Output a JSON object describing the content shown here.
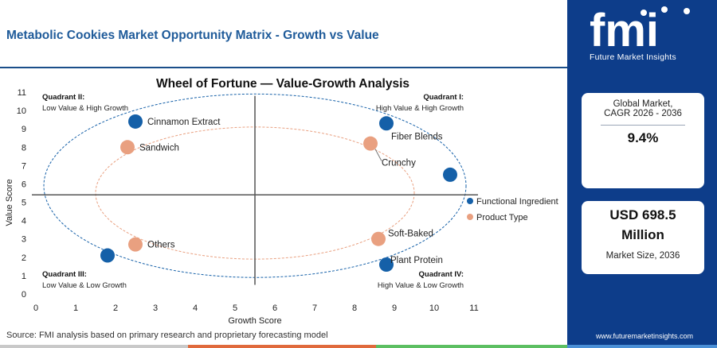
{
  "header": {
    "title": "Metabolic Cookies Market Opportunity Matrix - Growth vs Value"
  },
  "source_text": "Source: FMI analysis based on primary research and proprietary forecasting model",
  "brand": {
    "logo_text": "fmi",
    "logo_sub": "Future Market Insights",
    "website": "www.futuremarketinsights.com",
    "panel_color": "#0d3d8a"
  },
  "cards": {
    "cagr_label_1": "Global Market,",
    "cagr_label_2": "CAGR 2026 - 2036",
    "cagr_value": "9.4%",
    "size_value_1": "USD 698.5",
    "size_value_2": "Million",
    "size_label": "Market Size, 2036"
  },
  "bottom_bar_colors": [
    "#c9c9c9",
    "#e06a3c",
    "#5cbf62",
    "#4a8fd6"
  ],
  "chart_data": {
    "type": "scatter",
    "title": "Wheel of Fortune — Value-Growth Analysis",
    "xlabel": "Growth Score",
    "ylabel": "Value Score",
    "xlim": [
      0,
      11
    ],
    "ylim": [
      0,
      11
    ],
    "x_ticks": [
      "0",
      "1",
      "2",
      "3",
      "4",
      "5",
      "6",
      "7",
      "8",
      "9",
      "10",
      "11"
    ],
    "y_ticks": [
      "0",
      "1",
      "2",
      "3",
      "4",
      "5",
      "6",
      "7",
      "8",
      "9",
      "10",
      "11"
    ],
    "divider_x": 5.5,
    "divider_y": 5.4,
    "grid": false,
    "legend_position": "right",
    "quadrants": [
      {
        "title": "Quadrant II:",
        "desc": "Low Value & High Growth",
        "corner": "top-left"
      },
      {
        "title": "Quadrant I:",
        "desc": "High Value & High Growth",
        "corner": "top-right"
      },
      {
        "title": "Quadrant III:",
        "desc": "Low Value & Low Growth",
        "corner": "bottom-left"
      },
      {
        "title": "Quadrant IV:",
        "desc": "High Value & Low Growth",
        "corner": "bottom-right"
      }
    ],
    "series": [
      {
        "name": "Functional Ingredient",
        "color": "#1560a8",
        "ring": {
          "cx": 5.5,
          "cy": 5.9,
          "rx": 5.3,
          "ry": 5.0
        },
        "points": [
          {
            "label": "Cinnamon Extract",
            "x": 2.5,
            "y": 9.4
          },
          {
            "label": "Fiber Blends",
            "x": 8.8,
            "y": 9.3
          },
          {
            "label": "",
            "x": 10.4,
            "y": 6.5
          },
          {
            "label": "Plant Protein",
            "x": 8.8,
            "y": 1.6
          },
          {
            "label": "",
            "x": 1.8,
            "y": 2.1
          }
        ]
      },
      {
        "name": "Product Type",
        "color": "#e9a080",
        "ring": {
          "cx": 5.5,
          "cy": 5.5,
          "rx": 4.0,
          "ry": 3.6
        },
        "points": [
          {
            "label": "Sandwich",
            "x": 2.3,
            "y": 8.0
          },
          {
            "label": "Crunchy",
            "x": 8.4,
            "y": 8.2
          },
          {
            "label": "Soft-Baked",
            "x": 8.6,
            "y": 3.0
          },
          {
            "label": "Others",
            "x": 2.5,
            "y": 2.7
          }
        ]
      }
    ]
  }
}
